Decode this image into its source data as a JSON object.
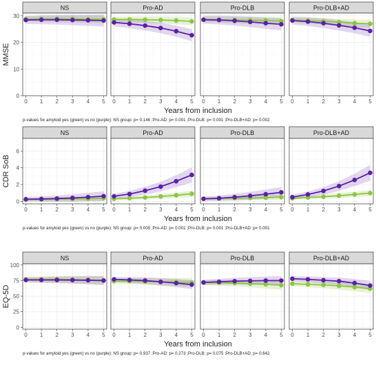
{
  "colors": {
    "amyloid_yes": "#8cc63f",
    "amyloid_no": "#5b1fa8",
    "strip_bg": "#d9d9d9",
    "panel_border": "#333333",
    "grid_major": "#ebebeb",
    "grid_minor": "#f5f5f5"
  },
  "chart_data": [
    {
      "type": "line",
      "ylabel": "MMSE",
      "xlabel": "Years from inclusion",
      "ylim": [
        0,
        31
      ],
      "yticks": [
        0,
        10,
        20,
        30
      ],
      "xlim": [
        -0.2,
        5.2
      ],
      "xticks": [
        0,
        1,
        2,
        3,
        4,
        5
      ],
      "ribbon": {
        "yes": 1.0,
        "no": 1.5
      },
      "caption": "p-values for amyloid yes (green) vs no (purple): NS group: p= 0.146  ;Pro-AD: p= 0.001  ;Pro-DLB: p= 0.001  ;Pro-DLB+AD: p= 0.002",
      "panels": [
        {
          "label": "NS",
          "x": [
            0,
            1,
            2,
            3,
            4,
            5
          ],
          "series": [
            {
              "key": "amyloid_yes",
              "values": [
                28.8,
                28.8,
                28.8,
                28.8,
                28.7,
                28.7
              ]
            },
            {
              "key": "amyloid_no",
              "values": [
                28.4,
                28.5,
                28.5,
                28.4,
                28.3,
                28.2
              ]
            }
          ]
        },
        {
          "label": "Pro-AD",
          "x": [
            0,
            1,
            2,
            3,
            4,
            5
          ],
          "series": [
            {
              "key": "amyloid_yes",
              "values": [
                28.6,
                28.6,
                28.5,
                28.4,
                28.2,
                27.9
              ]
            },
            {
              "key": "amyloid_no",
              "values": [
                27.5,
                27.0,
                26.3,
                25.4,
                24.2,
                22.7
              ]
            }
          ]
        },
        {
          "label": "Pro-DLB",
          "x": [
            0,
            1,
            2,
            3,
            4,
            5
          ],
          "series": [
            {
              "key": "amyloid_yes",
              "values": [
                28.6,
                28.5,
                28.4,
                28.3,
                28.2,
                28.0
              ]
            },
            {
              "key": "amyloid_no",
              "values": [
                28.5,
                28.4,
                28.1,
                27.7,
                27.2,
                26.8
              ]
            }
          ]
        },
        {
          "label": "Pro-DLB+AD",
          "x": [
            0,
            1,
            2,
            3,
            4,
            5
          ],
          "series": [
            {
              "key": "amyloid_yes",
              "values": [
                28.4,
                28.2,
                27.9,
                27.6,
                27.2,
                27.0
              ]
            },
            {
              "key": "amyloid_no",
              "values": [
                28.2,
                27.8,
                27.2,
                26.4,
                25.5,
                24.3
              ]
            }
          ]
        }
      ]
    },
    {
      "type": "line",
      "ylabel": "CDR SoB",
      "xlabel": "Years from inclusion",
      "ylim": [
        -0.3,
        7.5
      ],
      "yticks": [
        0,
        2,
        4,
        6
      ],
      "xlim": [
        -0.2,
        5.2
      ],
      "xticks": [
        0,
        1,
        2,
        3,
        4,
        5
      ],
      "ribbon": {
        "yes": 0.15,
        "no": 0.25,
        "grow": 1.0
      },
      "caption": "p-values for amyloid yes (green) vs no (purple): NS group: p= 0.005  ;Pro-AD: p= 0.001  ;Pro-DLB: p= 0.001  ;Pro-DLB+AD: p= 0.001",
      "panels": [
        {
          "label": "NS",
          "x": [
            0,
            1,
            2,
            3,
            4,
            5
          ],
          "series": [
            {
              "key": "amyloid_yes",
              "values": [
                0.2,
                0.22,
                0.25,
                0.28,
                0.32,
                0.37
              ]
            },
            {
              "key": "amyloid_no",
              "values": [
                0.25,
                0.28,
                0.33,
                0.4,
                0.5,
                0.62
              ]
            }
          ]
        },
        {
          "label": "Pro-AD",
          "x": [
            0,
            1,
            2,
            3,
            4,
            5
          ],
          "series": [
            {
              "key": "amyloid_yes",
              "values": [
                0.3,
                0.37,
                0.46,
                0.58,
                0.72,
                0.9
              ]
            },
            {
              "key": "amyloid_no",
              "values": [
                0.6,
                0.87,
                1.27,
                1.75,
                2.4,
                3.15
              ]
            }
          ]
        },
        {
          "label": "Pro-DLB",
          "x": [
            0,
            1,
            2,
            3,
            4,
            5
          ],
          "series": [
            {
              "key": "amyloid_yes",
              "values": [
                0.3,
                0.32,
                0.36,
                0.4,
                0.44,
                0.5
              ]
            },
            {
              "key": "amyloid_no",
              "values": [
                0.3,
                0.37,
                0.5,
                0.66,
                0.85,
                1.07
              ]
            }
          ]
        },
        {
          "label": "Pro-DLB+AD",
          "x": [
            0,
            1,
            2,
            3,
            4,
            5
          ],
          "series": [
            {
              "key": "amyloid_yes",
              "values": [
                0.35,
                0.45,
                0.55,
                0.67,
                0.82,
                0.98
              ]
            },
            {
              "key": "amyloid_no",
              "values": [
                0.5,
                0.82,
                1.24,
                1.82,
                2.55,
                3.4
              ]
            }
          ]
        }
      ]
    },
    {
      "type": "line",
      "ylabel": "EQ-5D",
      "xlabel": "Years from inclusion",
      "ylim": [
        -3,
        102
      ],
      "yticks": [
        0,
        25,
        50,
        75,
        100
      ],
      "xlim": [
        -0.2,
        5.2
      ],
      "xticks": [
        0,
        1,
        2,
        3,
        4,
        5
      ],
      "ribbon": {
        "yes": 4,
        "no": 4,
        "grow": 0.8
      },
      "caption": "p-values for amyloid yes (green) vs no (purple): NS group: p= 0.937  ;Pro-AD: p= 0.273  ;Pro-DLB: p= 0.075  ;Pro-DLB+AD: p= 0.642",
      "panels": [
        {
          "label": "NS",
          "x": [
            0,
            1,
            2,
            3,
            4,
            5
          ],
          "series": [
            {
              "key": "amyloid_yes",
              "values": [
                77,
                77,
                77,
                76.5,
                76,
                75.5
              ]
            },
            {
              "key": "amyloid_no",
              "values": [
                76,
                76,
                76,
                75.8,
                75.5,
                75
              ]
            }
          ]
        },
        {
          "label": "Pro-AD",
          "x": [
            0,
            1,
            2,
            3,
            4,
            5
          ],
          "series": [
            {
              "key": "amyloid_yes",
              "values": [
                74,
                74,
                73.5,
                73,
                72.5,
                72
              ]
            },
            {
              "key": "amyloid_no",
              "values": [
                77,
                76,
                75,
                73,
                71,
                68.5
              ]
            }
          ]
        },
        {
          "label": "Pro-DLB",
          "x": [
            0,
            1,
            2,
            3,
            4,
            5
          ],
          "series": [
            {
              "key": "amyloid_yes",
              "values": [
                72,
                71.5,
                71,
                70,
                69,
                67.5
              ]
            },
            {
              "key": "amyloid_no",
              "values": [
                72,
                73,
                74,
                74.5,
                75,
                75
              ]
            }
          ]
        },
        {
          "label": "Pro-DLB+AD",
          "x": [
            0,
            1,
            2,
            3,
            4,
            5
          ],
          "series": [
            {
              "key": "amyloid_yes",
              "values": [
                70,
                69,
                68,
                66.5,
                64.5,
                62
              ]
            },
            {
              "key": "amyloid_no",
              "values": [
                78,
                77,
                75.5,
                74,
                71,
                67
              ]
            }
          ]
        }
      ]
    }
  ]
}
